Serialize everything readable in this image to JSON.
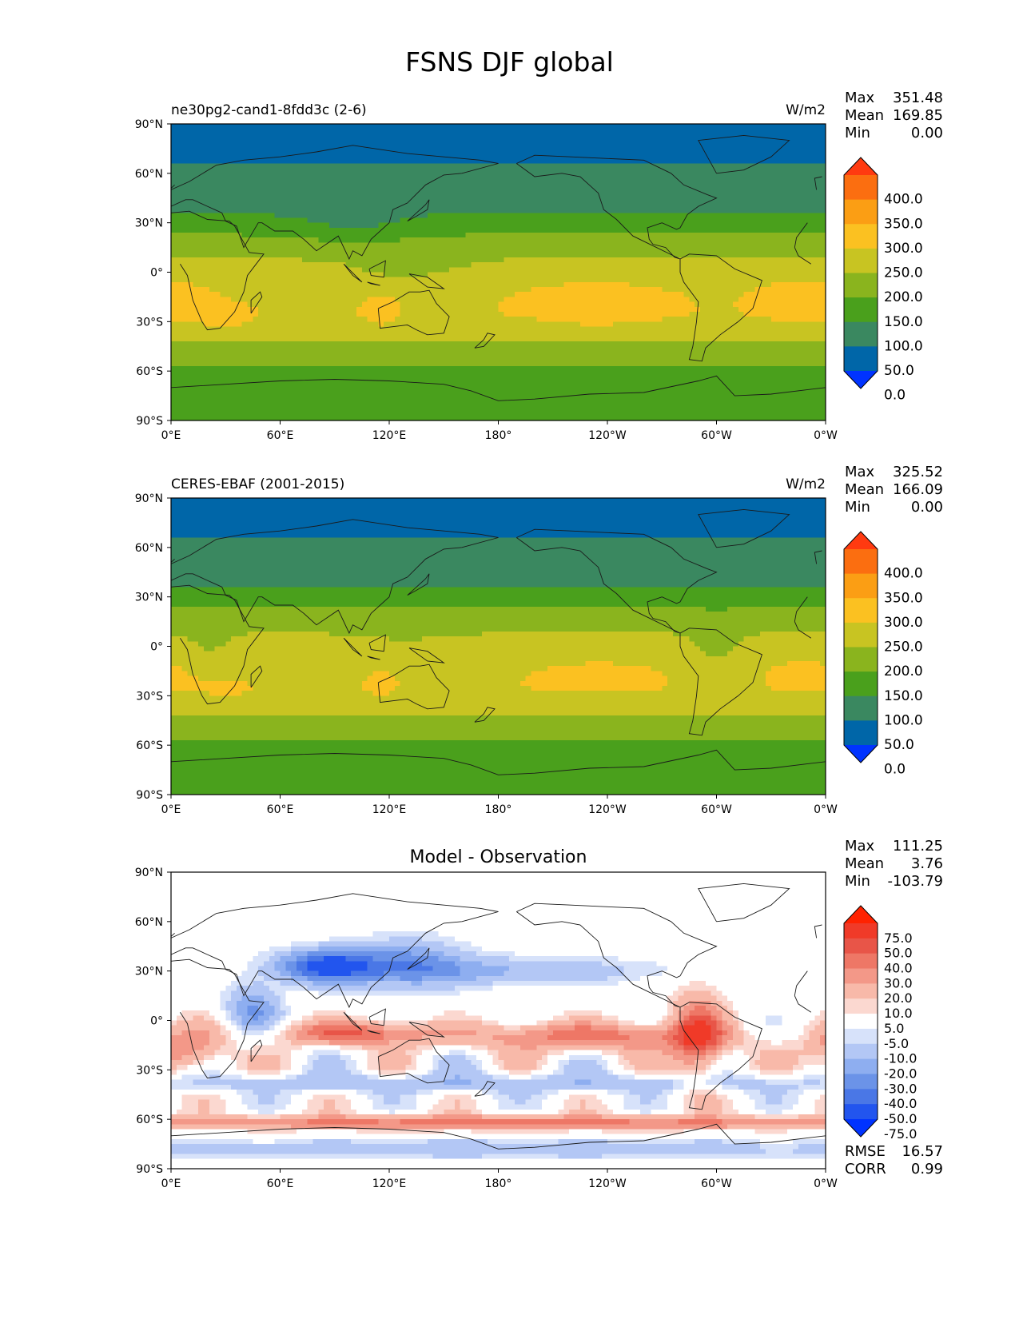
{
  "figure": {
    "title": "FSNS DJF global"
  },
  "axes": {
    "lat_ticks": [
      "90°N",
      "60°N",
      "30°N",
      "0°",
      "30°S",
      "60°S",
      "90°S"
    ],
    "lon_ticks": [
      "0°E",
      "60°E",
      "120°E",
      "180°",
      "120°W",
      "60°W",
      "0°W"
    ]
  },
  "colors": {
    "panel_levels_palette": [
      "#0033ff",
      "#0066a8",
      "#3a8860",
      "#4aa01c",
      "#8ab41e",
      "#c8c422",
      "#fbc121",
      "#fb9e14",
      "#fb6e10",
      "#ff3a10"
    ],
    "diff_palette": [
      "#0033ff",
      "#2255ee",
      "#4a77e6",
      "#6b93e8",
      "#8eaef0",
      "#b3c7f5",
      "#d7e2fa",
      "#ffffff",
      "#fbd8d0",
      "#f8b9a9",
      "#f39888",
      "#ee7766",
      "#e85548",
      "#f03a28",
      "#ff2200"
    ],
    "coastline": "#1a1a1a"
  },
  "panels": [
    {
      "left_title": "ne30pg2-cand1-8fdd3c (2-6)",
      "right_title": "W/m2",
      "center_title": "",
      "stats": [
        {
          "label": "Max",
          "value": "351.48"
        },
        {
          "label": "Mean",
          "value": "169.85"
        },
        {
          "label": "Min",
          "value": "0.00"
        }
      ],
      "colorbar": {
        "labels": [
          "400.0",
          "350.0",
          "300.0",
          "250.0",
          "200.0",
          "150.0",
          "100.0",
          "50.0",
          "0.0"
        ],
        "kind": "field"
      },
      "map_kind": "model"
    },
    {
      "left_title": "CERES-EBAF (2001-2015)",
      "right_title": "W/m2",
      "center_title": "",
      "stats": [
        {
          "label": "Max",
          "value": "325.52"
        },
        {
          "label": "Mean",
          "value": "166.09"
        },
        {
          "label": "Min",
          "value": "0.00"
        }
      ],
      "colorbar": {
        "labels": [
          "400.0",
          "350.0",
          "300.0",
          "250.0",
          "200.0",
          "150.0",
          "100.0",
          "50.0",
          "0.0"
        ],
        "kind": "field"
      },
      "map_kind": "obs"
    },
    {
      "left_title": "",
      "right_title": "",
      "center_title": "Model - Observation",
      "stats": [
        {
          "label": "Max",
          "value": "111.25"
        },
        {
          "label": "Mean",
          "value": "3.76"
        },
        {
          "label": "Min",
          "value": "-103.79"
        }
      ],
      "colorbar": {
        "labels": [
          "75.0",
          "50.0",
          "40.0",
          "30.0",
          "20.0",
          "10.0",
          "5.0",
          "-5.0",
          "-10.0",
          "-20.0",
          "-30.0",
          "-40.0",
          "-50.0",
          "-75.0"
        ],
        "kind": "diff"
      },
      "footer_stats": [
        {
          "label": "RMSE",
          "value": "16.57"
        },
        {
          "label": "CORR",
          "value": "0.99"
        }
      ],
      "map_kind": "diff"
    }
  ]
}
